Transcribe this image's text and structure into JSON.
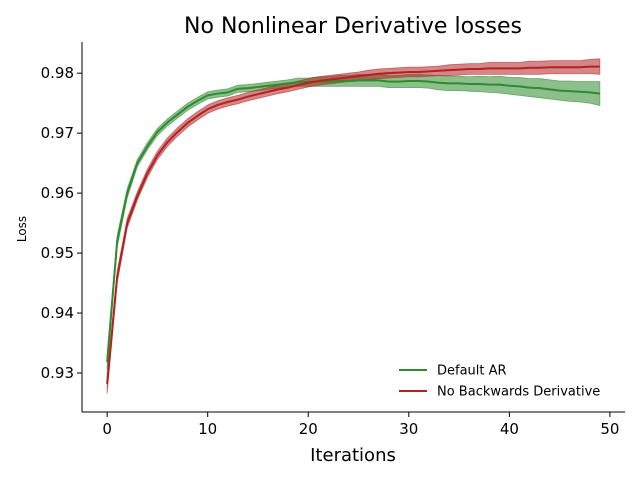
{
  "chart_data": {
    "type": "line",
    "title": "No Nonlinear Derivative losses",
    "xlabel": "Iterations",
    "ylabel": "Loss",
    "xlim": [
      -2.5,
      51.5
    ],
    "ylim": [
      0.9235,
      0.9852
    ],
    "xticks": [
      0,
      10,
      20,
      30,
      40,
      50
    ],
    "yticks": [
      0.93,
      0.94,
      0.95,
      0.96,
      0.97,
      0.98
    ],
    "xtick_labels": [
      "0",
      "10",
      "20",
      "30",
      "40",
      "50"
    ],
    "ytick_labels": [
      "0.93",
      "0.94",
      "0.95",
      "0.96",
      "0.97",
      "0.98"
    ],
    "grid": false,
    "legend_position": "lower-right",
    "legend": [
      "Default AR",
      "No Backwards Derivative"
    ],
    "x": [
      0,
      1,
      2,
      3,
      4,
      5,
      6,
      7,
      8,
      9,
      10,
      11,
      12,
      13,
      14,
      15,
      16,
      17,
      18,
      19,
      20,
      21,
      22,
      23,
      24,
      25,
      26,
      27,
      28,
      29,
      30,
      31,
      32,
      33,
      34,
      35,
      36,
      37,
      38,
      39,
      40,
      41,
      42,
      43,
      44,
      45,
      46,
      47,
      48,
      49
    ],
    "series": [
      {
        "name": "Default AR",
        "color": "#2e8b2e",
        "values": [
          0.9318,
          0.952,
          0.96,
          0.965,
          0.9678,
          0.9702,
          0.9718,
          0.9731,
          0.9744,
          0.9754,
          0.9763,
          0.9766,
          0.9768,
          0.9774,
          0.9775,
          0.9777,
          0.9779,
          0.9781,
          0.9783,
          0.9785,
          0.9785,
          0.9786,
          0.9786,
          0.9787,
          0.9787,
          0.9788,
          0.9788,
          0.9788,
          0.9786,
          0.9786,
          0.9787,
          0.9787,
          0.9786,
          0.9784,
          0.9783,
          0.9783,
          0.9782,
          0.9782,
          0.9781,
          0.9781,
          0.9779,
          0.9778,
          0.9776,
          0.9775,
          0.9773,
          0.9771,
          0.977,
          0.9769,
          0.9768,
          0.9766
        ],
        "lower": [
          0.9305,
          0.951,
          0.9592,
          0.9644,
          0.9672,
          0.9696,
          0.9712,
          0.9725,
          0.9738,
          0.9748,
          0.9757,
          0.976,
          0.9762,
          0.9768,
          0.9769,
          0.9771,
          0.9773,
          0.9775,
          0.9777,
          0.9778,
          0.9778,
          0.9778,
          0.9778,
          0.9778,
          0.9778,
          0.9778,
          0.9778,
          0.9778,
          0.9776,
          0.9776,
          0.9776,
          0.9776,
          0.9775,
          0.9772,
          0.9771,
          0.9771,
          0.977,
          0.9769,
          0.9768,
          0.9767,
          0.9765,
          0.9763,
          0.9761,
          0.9759,
          0.9757,
          0.9755,
          0.9753,
          0.9752,
          0.975,
          0.9746
        ],
        "upper": [
          0.9331,
          0.953,
          0.9608,
          0.9656,
          0.9684,
          0.9708,
          0.9724,
          0.9737,
          0.975,
          0.976,
          0.9769,
          0.9772,
          0.9774,
          0.978,
          0.9781,
          0.9783,
          0.9785,
          0.9787,
          0.9789,
          0.9792,
          0.9792,
          0.9794,
          0.9794,
          0.9796,
          0.9796,
          0.9798,
          0.9798,
          0.9798,
          0.9796,
          0.9796,
          0.9798,
          0.9798,
          0.9797,
          0.9796,
          0.9795,
          0.9795,
          0.9794,
          0.9795,
          0.9794,
          0.9795,
          0.9793,
          0.9793,
          0.9791,
          0.9791,
          0.9789,
          0.9787,
          0.9787,
          0.9786,
          0.9786,
          0.9786
        ]
      },
      {
        "name": "No Backwards Derivative",
        "color": "#b22222",
        "values": [
          0.9282,
          0.946,
          0.955,
          0.9595,
          0.9633,
          0.9663,
          0.9685,
          0.9702,
          0.9717,
          0.9729,
          0.974,
          0.9747,
          0.9752,
          0.9756,
          0.9761,
          0.9765,
          0.9769,
          0.9773,
          0.9776,
          0.978,
          0.9784,
          0.9787,
          0.9789,
          0.9791,
          0.9793,
          0.9795,
          0.9797,
          0.9799,
          0.98,
          0.9801,
          0.9802,
          0.9802,
          0.9803,
          0.9804,
          0.9805,
          0.9806,
          0.9807,
          0.9807,
          0.9808,
          0.9808,
          0.9808,
          0.9808,
          0.9809,
          0.9809,
          0.981,
          0.981,
          0.981,
          0.981,
          0.9811,
          0.9811
        ],
        "lower": [
          0.9266,
          0.945,
          0.9542,
          0.9588,
          0.9626,
          0.9656,
          0.9678,
          0.9695,
          0.971,
          0.9722,
          0.9733,
          0.974,
          0.9745,
          0.9749,
          0.9754,
          0.9758,
          0.9762,
          0.9766,
          0.9769,
          0.9773,
          0.9777,
          0.978,
          0.9782,
          0.9784,
          0.9786,
          0.9788,
          0.9789,
          0.9791,
          0.9792,
          0.9793,
          0.9794,
          0.9794,
          0.9795,
          0.9796,
          0.9796,
          0.9797,
          0.9798,
          0.9798,
          0.9798,
          0.9798,
          0.9798,
          0.9798,
          0.9798,
          0.9798,
          0.9799,
          0.9799,
          0.9799,
          0.9799,
          0.9799,
          0.9798
        ],
        "upper": [
          0.9298,
          0.947,
          0.9558,
          0.9602,
          0.964,
          0.967,
          0.9692,
          0.9709,
          0.9724,
          0.9736,
          0.9747,
          0.9754,
          0.9759,
          0.9763,
          0.9768,
          0.9772,
          0.9776,
          0.978,
          0.9783,
          0.9787,
          0.9791,
          0.9794,
          0.9796,
          0.9798,
          0.98,
          0.9802,
          0.9805,
          0.9807,
          0.9808,
          0.9809,
          0.981,
          0.981,
          0.9811,
          0.9812,
          0.9814,
          0.9815,
          0.9816,
          0.9816,
          0.9818,
          0.9818,
          0.9818,
          0.9818,
          0.982,
          0.982,
          0.9821,
          0.9821,
          0.9821,
          0.9821,
          0.9823,
          0.9824
        ]
      }
    ]
  }
}
